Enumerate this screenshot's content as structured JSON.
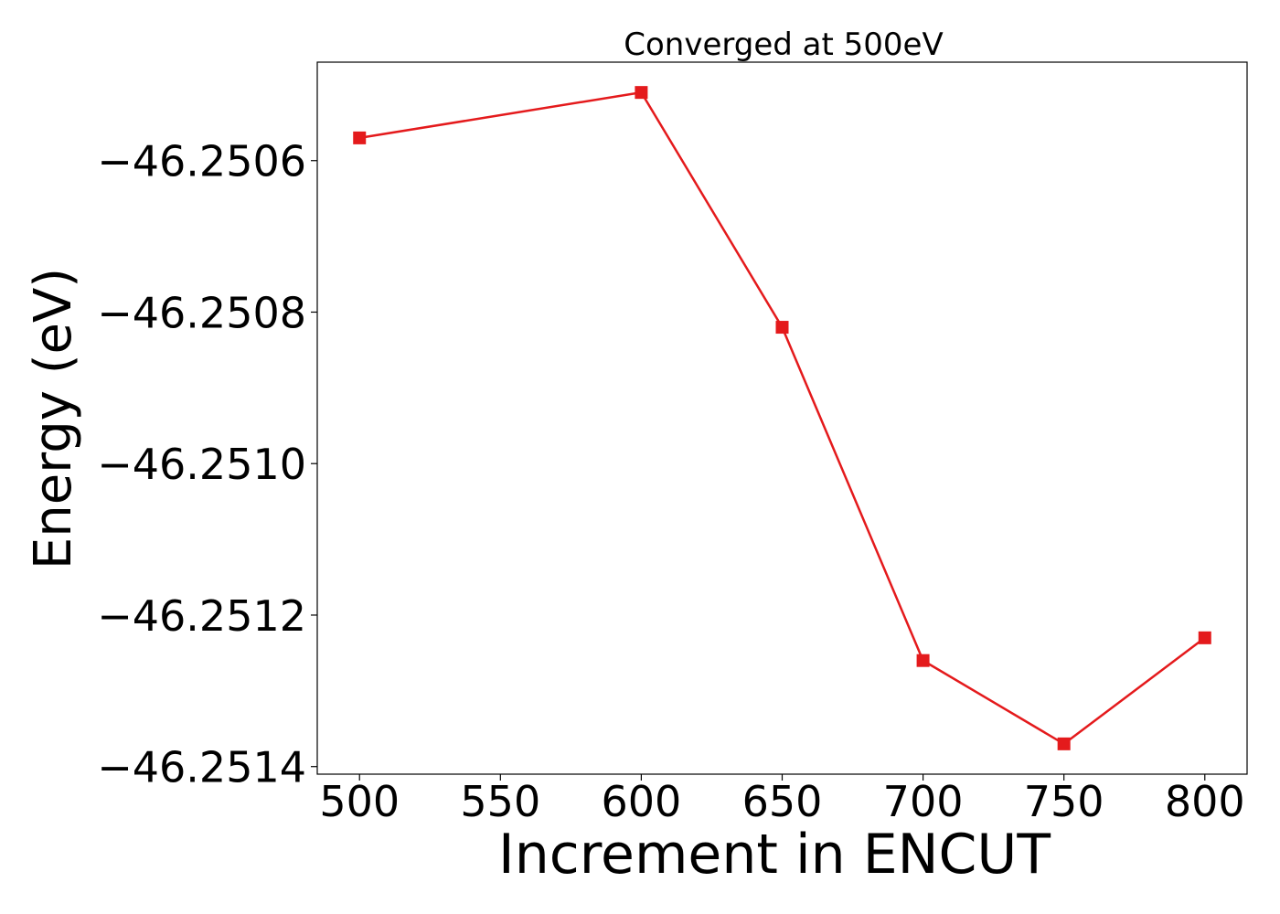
{
  "chart_data": {
    "type": "line",
    "title": "Converged at 500eV",
    "xlabel": "Increment in ENCUT",
    "ylabel": "Energy (eV)",
    "x": [
      500,
      600,
      650,
      700,
      750,
      800
    ],
    "series": [
      {
        "values": [
          -46.25057,
          -46.25051,
          -46.25082,
          -46.25126,
          -46.25137,
          -46.25123
        ],
        "color": "#e41a1c",
        "marker": "square"
      }
    ],
    "xlim": [
      485,
      815
    ],
    "ylim": [
      -46.25141,
      -46.25047
    ],
    "xticks": [
      500,
      550,
      600,
      650,
      700,
      750,
      800
    ],
    "xtick_labels": [
      "500",
      "550",
      "600",
      "650",
      "700",
      "750",
      "800"
    ],
    "yticks": [
      -46.2506,
      -46.2508,
      -46.251,
      -46.2512,
      -46.2514
    ],
    "ytick_labels": [
      "−46.2506",
      "−46.2508",
      "−46.2510",
      "−46.2512",
      "−46.2514"
    ],
    "grid": false,
    "legend": "none"
  }
}
